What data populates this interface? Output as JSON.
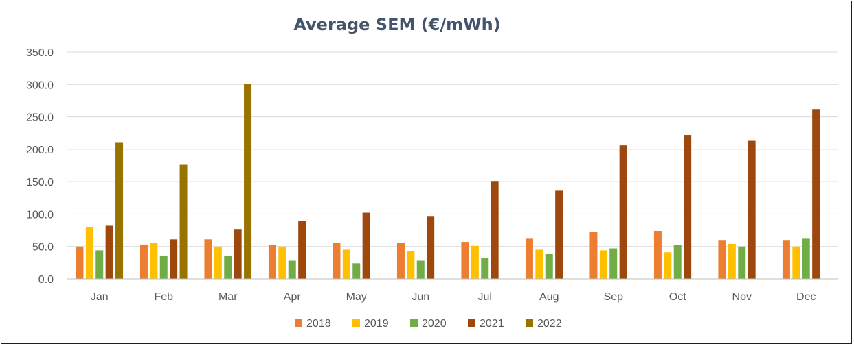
{
  "chart_data": {
    "type": "bar",
    "title": "Average SEM (€/mWh)",
    "xlabel": "",
    "ylabel": "",
    "categories": [
      "Jan",
      "Feb",
      "Mar",
      "Apr",
      "May",
      "Jun",
      "Jul",
      "Aug",
      "Sep",
      "Oct",
      "Nov",
      "Dec"
    ],
    "ylim": [
      0,
      350
    ],
    "yticks": [
      "0.0",
      "50.0",
      "100.0",
      "150.0",
      "200.0",
      "250.0",
      "300.0",
      "350.0"
    ],
    "grid": true,
    "legend_position": "bottom",
    "series": [
      {
        "name": "2018",
        "color": "#ed7d31",
        "values": [
          50,
          53,
          61,
          52,
          55,
          56,
          57,
          62,
          72,
          74,
          59,
          59
        ]
      },
      {
        "name": "2019",
        "color": "#ffc000",
        "values": [
          80,
          55,
          50,
          50,
          45,
          43,
          51,
          45,
          44,
          41,
          54,
          50
        ]
      },
      {
        "name": "2020",
        "color": "#70ad47",
        "values": [
          44,
          36,
          36,
          28,
          24,
          28,
          32,
          39,
          47,
          52,
          50,
          62
        ]
      },
      {
        "name": "2021",
        "color": "#9e480e",
        "values": [
          82,
          61,
          77,
          89,
          102,
          97,
          151,
          136,
          206,
          222,
          213,
          262
        ]
      },
      {
        "name": "2022",
        "color": "#997300",
        "values": [
          211,
          176,
          301,
          null,
          null,
          null,
          null,
          null,
          null,
          null,
          null,
          null
        ]
      }
    ]
  }
}
